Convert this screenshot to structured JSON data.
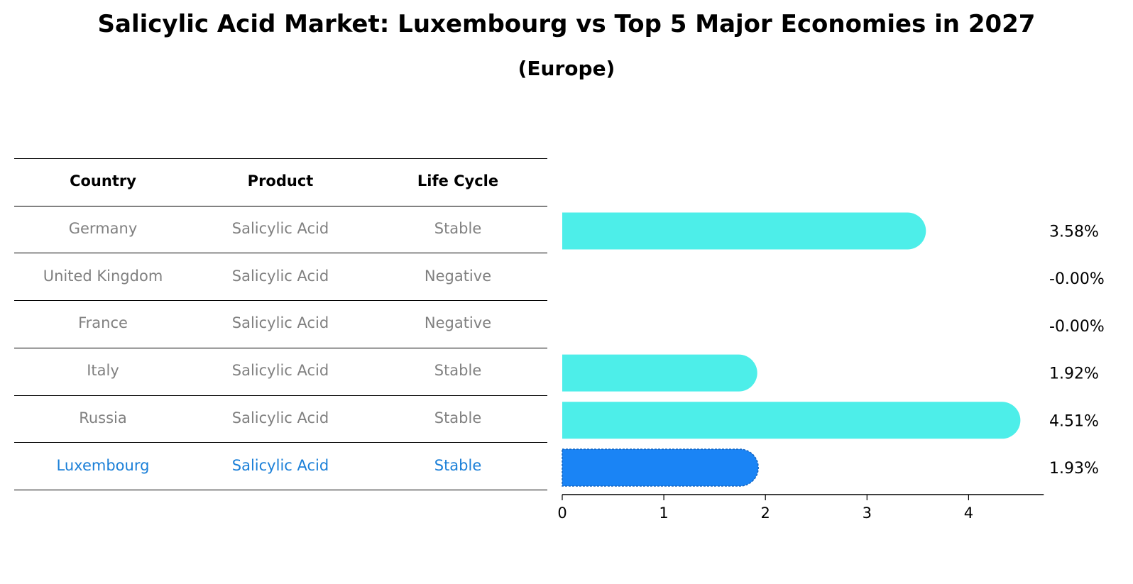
{
  "title": "Salicylic Acid Market: Luxembourg vs Top 5 Major Economies in 2027",
  "subtitle": "(Europe)",
  "table": {
    "headers": [
      "Country",
      "Product",
      "Life Cycle"
    ],
    "rows": [
      {
        "country": "Germany",
        "product": "Salicylic Acid",
        "life_cycle": "Stable",
        "highlight": false
      },
      {
        "country": "United Kingdom",
        "product": "Salicylic Acid",
        "life_cycle": "Negative",
        "highlight": false
      },
      {
        "country": "France",
        "product": "Salicylic Acid",
        "life_cycle": "Negative",
        "highlight": false
      },
      {
        "country": "Italy",
        "product": "Salicylic Acid",
        "life_cycle": "Stable",
        "highlight": false
      },
      {
        "country": "Russia",
        "product": "Salicylic Acid",
        "life_cycle": "Stable",
        "highlight": false
      },
      {
        "country": "Luxembourg",
        "product": "Salicylic Acid",
        "life_cycle": "Stable",
        "highlight": true
      }
    ]
  },
  "colors": {
    "bar": "#4deee9",
    "highlight_bar": "#1a84f5",
    "highlight_text": "#1a7fd8",
    "muted_text": "#808080"
  },
  "chart_data": {
    "type": "bar",
    "orientation": "horizontal",
    "categories": [
      "Germany",
      "United Kingdom",
      "France",
      "Italy",
      "Russia",
      "Luxembourg"
    ],
    "values": [
      3.58,
      -0.0,
      -0.0,
      1.92,
      4.51,
      1.93
    ],
    "value_labels": [
      "3.58%",
      "-0.00%",
      "-0.00%",
      "1.92%",
      "4.51%",
      "1.93%"
    ],
    "xticks": [
      0,
      1,
      2,
      3,
      4
    ],
    "xlim": [
      0,
      4.74
    ],
    "highlight_category": "Luxembourg",
    "grid": false,
    "legend": "none"
  }
}
